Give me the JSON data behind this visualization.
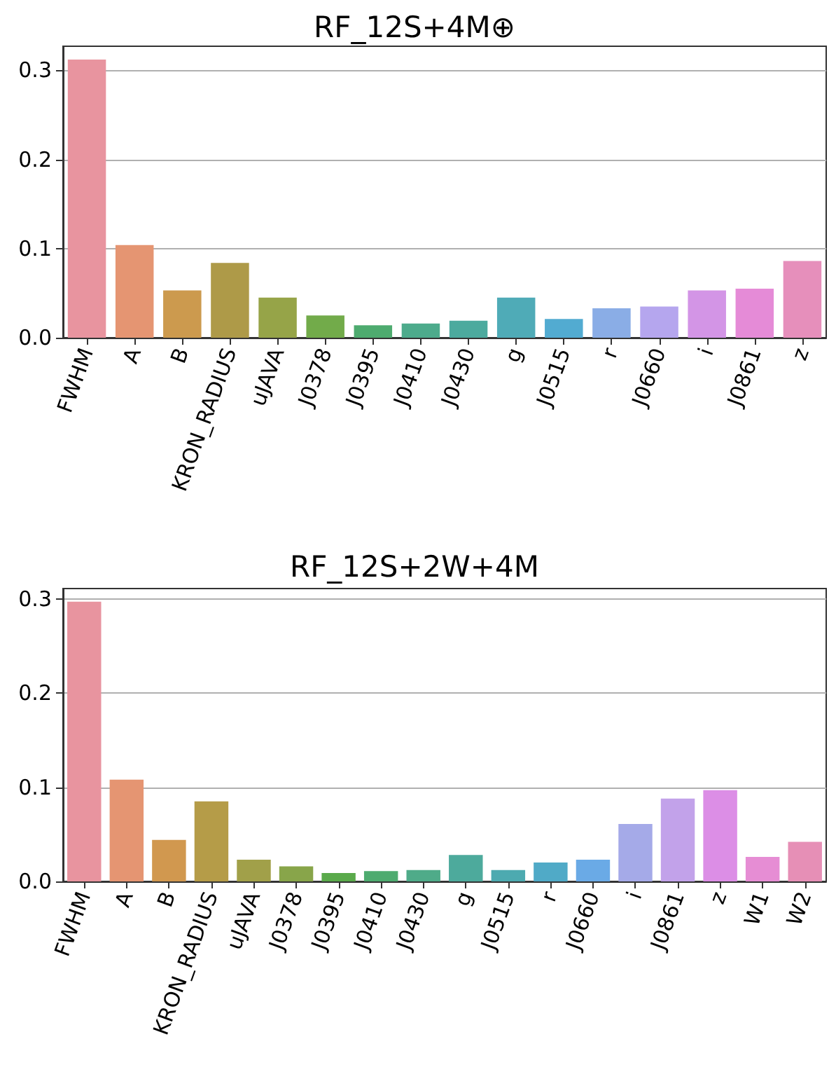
{
  "chart_data": [
    {
      "type": "bar",
      "title": "RF_12S+4M⊕",
      "categories": [
        "FWHM",
        "A",
        "B",
        "KRON_RADIUS",
        "uJAVA",
        "J0378",
        "J0395",
        "J0410",
        "J0430",
        "g",
        "J0515",
        "r",
        "J0660",
        "i",
        "J0861",
        "z"
      ],
      "values": [
        0.312,
        0.104,
        0.053,
        0.084,
        0.045,
        0.025,
        0.014,
        0.016,
        0.019,
        0.045,
        0.021,
        0.033,
        0.035,
        0.053,
        0.055,
        0.086
      ],
      "colors": [
        "#e8949f",
        "#e59572",
        "#cc9a4e",
        "#ae9a48",
        "#96a448",
        "#72ab4a",
        "#4eab6f",
        "#4dab8c",
        "#4caa9e",
        "#4fabb7",
        "#52abd1",
        "#8aade6",
        "#b5a6ee",
        "#d395e6",
        "#e58bd7",
        "#e68fbb"
      ],
      "ylim": [
        0,
        0.327
      ],
      "yticks": [
        {
          "value": 0,
          "label": "0.0"
        },
        {
          "value": 0.1,
          "label": "0.1"
        },
        {
          "value": 0.2,
          "label": "0.2"
        },
        {
          "value": 0.3,
          "label": "0.3"
        }
      ],
      "grid": "y"
    },
    {
      "type": "bar",
      "title": "RF_12S+2W+4M",
      "categories": [
        "FWHM",
        "A",
        "B",
        "KRON_RADIUS",
        "uJAVA",
        "J0378",
        "J0395",
        "J0410",
        "J0430",
        "g",
        "J0515",
        "r",
        "J0660",
        "i",
        "J0861",
        "z",
        "W1",
        "W2"
      ],
      "values": [
        0.297,
        0.108,
        0.044,
        0.085,
        0.023,
        0.016,
        0.009,
        0.011,
        0.012,
        0.028,
        0.012,
        0.02,
        0.023,
        0.061,
        0.088,
        0.097,
        0.026,
        0.042
      ],
      "colors": [
        "#e8949f",
        "#e59572",
        "#d1984f",
        "#b59c48",
        "#a1a049",
        "#88a54a",
        "#5aaa4b",
        "#4eab6f",
        "#4fab89",
        "#4daa9c",
        "#4daab0",
        "#50aac7",
        "#6aaae6",
        "#a5aae8",
        "#c2a2ea",
        "#dc8ee6",
        "#e68dd4",
        "#e68fb6"
      ],
      "ylim": [
        0,
        0.311
      ],
      "yticks": [
        {
          "value": 0,
          "label": "0.0"
        },
        {
          "value": 0.1,
          "label": "0.1"
        },
        {
          "value": 0.2,
          "label": "0.2"
        },
        {
          "value": 0.3,
          "label": "0.3"
        }
      ],
      "grid": "y"
    }
  ]
}
